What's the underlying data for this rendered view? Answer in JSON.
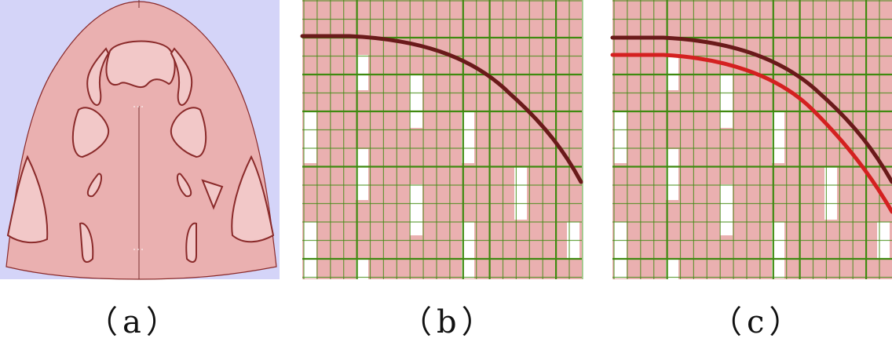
{
  "panels": [
    {
      "label": "（a）"
    },
    {
      "label": "（b）"
    },
    {
      "label": "（c）"
    }
  ],
  "colors": {
    "background_a": "#d4d4f8",
    "region_fill": "#eab0b0",
    "outline": "#8a2a2a",
    "grid_line": "#3f8a10",
    "curve_original": "#6a1a1a",
    "curve_offset": "#d42020",
    "empty_cell": "#ffffff"
  }
}
